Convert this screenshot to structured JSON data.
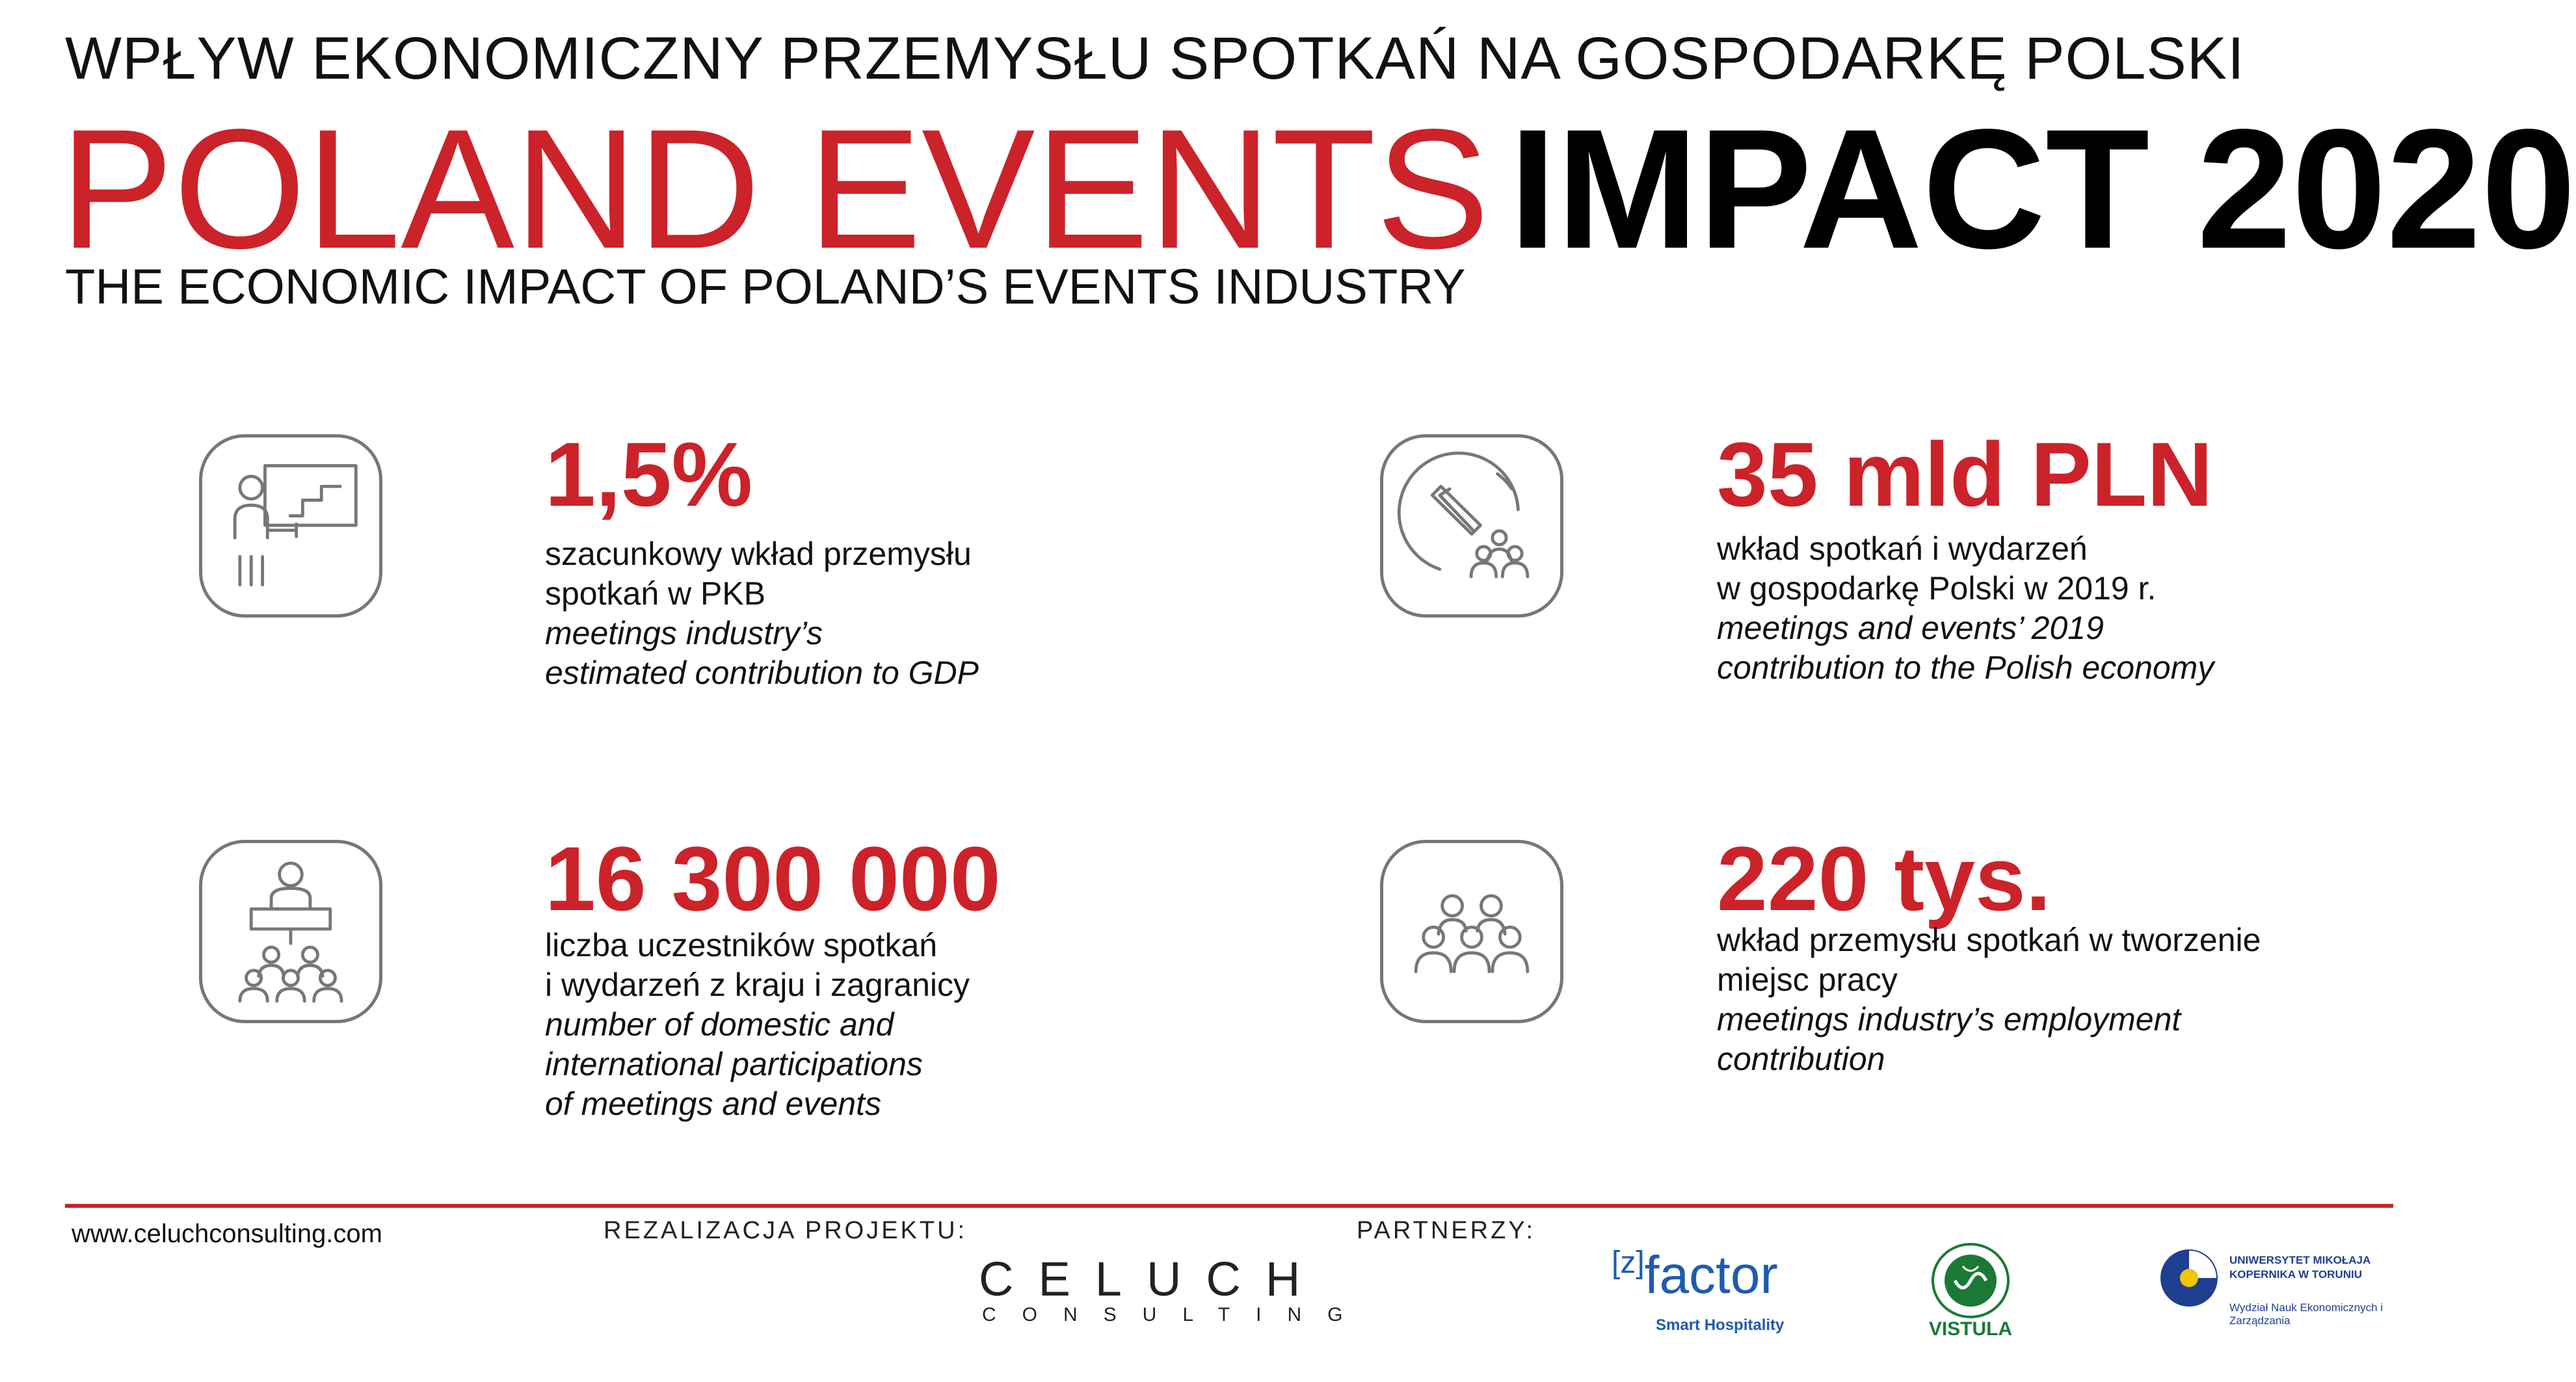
{
  "header": {
    "title_pl": "WPŁYW EKONOMICZNY PRZEMYSŁU SPOTKAŃ NA GOSPODARKĘ POLSKI",
    "title_red": "POLAND EVENTS",
    "title_black": "IMPACT 2020",
    "subtitle_en": "THE ECONOMIC IMPACT OF POLAND’S EVENTS INDUSTRY"
  },
  "stats": [
    {
      "icon": "presentation-icon",
      "value": "1,5%",
      "pl_line1": "szacunkowy wkład przemysłu",
      "pl_line2": "spotkań w PKB",
      "en_line1": "meetings industry’s",
      "en_line2": "estimated contribution to GDP"
    },
    {
      "icon": "growth-audience-icon",
      "value": "35 mld PLN",
      "pl_line1": "wkład spotkań i wydarzeń",
      "pl_line2": "w gospodarkę Polski w 2019 r.",
      "en_line1": "meetings and events’ 2019",
      "en_line2": "contribution to the Polish economy"
    },
    {
      "icon": "speaker-audience-icon",
      "value": "16 300 000",
      "pl_line1": "liczba uczestników spotkań",
      "pl_line2": "i wydarzeń z kraju i zagranicy",
      "en_line1": "number of domestic and",
      "en_line2": "international participations",
      "en_line3": "of meetings and events"
    },
    {
      "icon": "people-group-icon",
      "value": "220 tys.",
      "pl_line1": "wkład przemysłu spotkań w tworzenie",
      "pl_line2": "miejsc pracy",
      "en_line1": "meetings industry’s employment",
      "en_line2": "contribution"
    }
  ],
  "footer": {
    "url": "www.celuchconsulting.com",
    "project_label": "REZALIZACJA PROJEKTU:",
    "partners_label": "PARTNERZY:",
    "celuch_top": "CELUCH",
    "celuch_bottom": "CONSULTING",
    "zfactor_bracket": "[z]",
    "zfactor_word": "factor",
    "zfactor_sub": "Smart Hospitality",
    "vistula": "VISTULA",
    "umk_title": "UNIWERSYTET MIKOŁAJA KOPERNIKA W TORUNIU",
    "umk_sub": "Wydział Nauk Ekonomicznych i Zarządzania"
  },
  "colors": {
    "accent": "#cc2229",
    "icon_stroke": "#777777"
  }
}
